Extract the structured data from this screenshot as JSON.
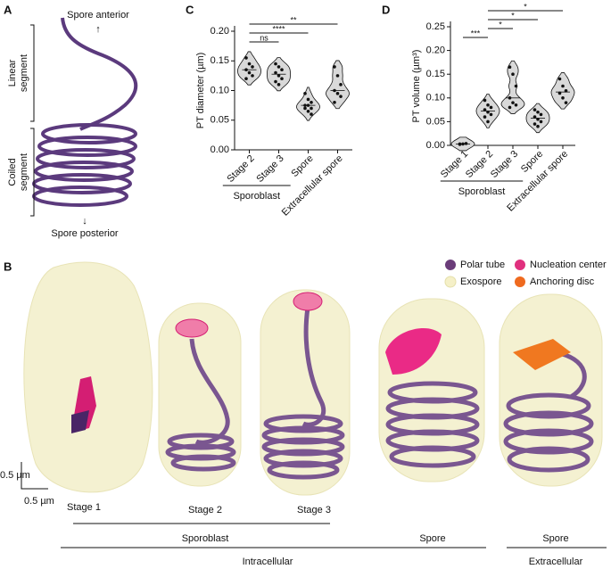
{
  "panel_labels": [
    "A",
    "B",
    "C",
    "D"
  ],
  "panel_a": {
    "top": "Spore anterior",
    "bottom": "Spore posterior",
    "linear": [
      "Linear",
      "segment"
    ],
    "coiled": [
      "Coiled",
      "segment"
    ]
  },
  "panel_b": {
    "legend": [
      "Polar tube",
      "Nucleation center",
      "Exospore",
      "Anchoring disc"
    ],
    "scale": [
      "0.5 µm",
      "0.5 µm"
    ],
    "stages": [
      "Stage 1",
      "Stage 2",
      "Stage 3"
    ],
    "groups": [
      "Sporoblast",
      "Spore",
      "Spore"
    ],
    "contexts": [
      "Intracellular",
      "Extracellular"
    ]
  },
  "chart_data": [
    {
      "type": "violin",
      "ylabel": "PT diameter (µm)",
      "categories": [
        "Stage 2",
        "Stage 3",
        "Spore",
        "Extracellular spore"
      ],
      "values": [
        [
          0.155,
          0.145,
          0.14,
          0.135,
          0.13,
          0.125,
          0.12
        ],
        [
          0.145,
          0.14,
          0.135,
          0.13,
          0.125,
          0.12,
          0.115,
          0.11
        ],
        [
          0.095,
          0.085,
          0.08,
          0.075,
          0.075,
          0.07,
          0.07,
          0.065,
          0.06
        ],
        [
          0.14,
          0.125,
          0.11,
          0.1,
          0.095,
          0.09,
          0.08
        ]
      ],
      "color": "#d9d9d9",
      "ylim": [
        0,
        0.2
      ],
      "yticks": [
        {
          "value": 0,
          "label": "0.00"
        },
        {
          "value": 0.05,
          "label": "0.05"
        },
        {
          "value": 0.1,
          "label": "0.10"
        },
        {
          "value": 0.15,
          "label": "0.15"
        },
        {
          "value": 0.2,
          "label": "0.20"
        }
      ],
      "annotations": [
        {
          "text": "ns",
          "between": [
            "Stage 2",
            "Stage 3"
          ]
        },
        {
          "text": "****",
          "between": [
            "Stage 2",
            "Spore"
          ]
        },
        {
          "text": "**",
          "between": [
            "Stage 2",
            "Extracellular spore"
          ]
        }
      ],
      "group": {
        "label": "Sporoblast",
        "categories": [
          "Stage 2",
          "Stage 3"
        ]
      }
    },
    {
      "type": "violin",
      "ylabel": "PT volume (µm³)",
      "categories": [
        "Stage 1",
        "Stage 2",
        "Stage 3",
        "Spore",
        "Extracellular spore"
      ],
      "values": [
        [
          0.003,
          0.003,
          0.004,
          0.002
        ],
        [
          0.095,
          0.085,
          0.08,
          0.075,
          0.07,
          0.065,
          0.06,
          0.05
        ],
        [
          0.165,
          0.15,
          0.125,
          0.1,
          0.09,
          0.085,
          0.08
        ],
        [
          0.075,
          0.07,
          0.065,
          0.06,
          0.055,
          0.05,
          0.045,
          0.04
        ],
        [
          0.14,
          0.125,
          0.115,
          0.11,
          0.1,
          0.09
        ]
      ],
      "color": "#d9d9d9",
      "ylim": [
        0,
        0.25
      ],
      "yticks": [
        {
          "value": 0,
          "label": "0.00"
        },
        {
          "value": 0.05,
          "label": "0.05"
        },
        {
          "value": 0.1,
          "label": "0.10"
        },
        {
          "value": 0.15,
          "label": "0.15"
        },
        {
          "value": 0.2,
          "label": "0.20"
        },
        {
          "value": 0.25,
          "label": "0.25"
        }
      ],
      "annotations": [
        {
          "text": "***",
          "between": [
            "Stage 1",
            "Stage 2"
          ]
        },
        {
          "text": "*",
          "between": [
            "Stage 2",
            "Stage 3"
          ]
        },
        {
          "text": "*",
          "between": [
            "Stage 2",
            "Spore"
          ]
        },
        {
          "text": "*",
          "between": [
            "Stage 2",
            "Extracellular spore"
          ]
        }
      ],
      "group": {
        "label": "Sporoblast",
        "categories": [
          "Stage 1",
          "Stage 2",
          "Stage 3"
        ]
      }
    }
  ]
}
